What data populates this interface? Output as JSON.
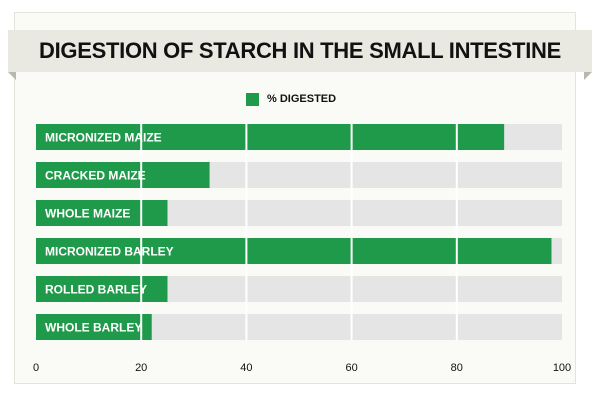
{
  "colors": {
    "bar": "#1f9a4a",
    "track": "#e5e5e5",
    "gridline": "#ffffff"
  },
  "chart_data": {
    "type": "bar",
    "orientation": "horizontal",
    "title": "DIGESTION OF STARCH IN THE SMALL INTESTINE",
    "legend": {
      "label": "% DIGESTED",
      "position": "top-center"
    },
    "categories": [
      "MICRONIZED MAIZE",
      "CRACKED MAIZE",
      "WHOLE MAIZE",
      "MICRONIZED BARLEY",
      "ROLLED BARLEY",
      "WHOLE BARLEY"
    ],
    "series": [
      {
        "name": "% DIGESTED",
        "values": [
          89,
          33,
          25,
          98,
          25,
          22
        ]
      }
    ],
    "xlim": [
      0,
      100
    ],
    "xticks": [
      "0",
      "20",
      "40",
      "60",
      "80",
      "100"
    ],
    "grid": true
  }
}
